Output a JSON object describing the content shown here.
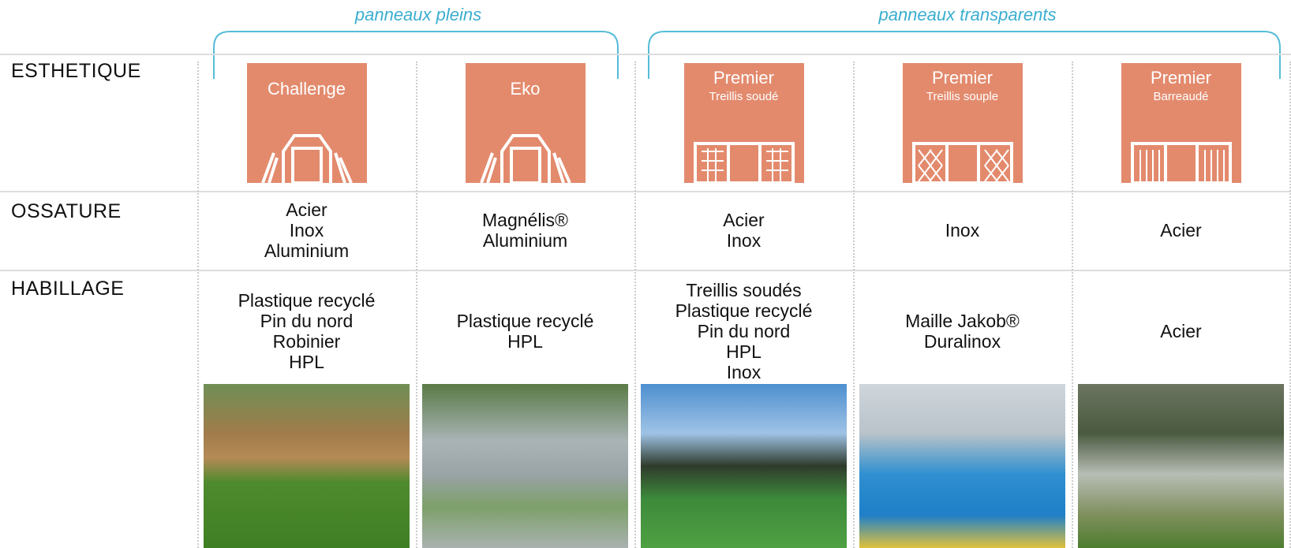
{
  "groups": [
    {
      "label": "panneaux pleins"
    },
    {
      "label": "panneaux transparents"
    }
  ],
  "row_labels": [
    "ESTHETIQUE",
    "OSSATURE",
    "HABILLAGE"
  ],
  "products": [
    {
      "name": "Challenge",
      "ossature": [
        "Acier",
        "Inox",
        "Aluminium"
      ],
      "habillage": [
        "Plastique recyclé",
        "Pin du nord",
        "Robinier",
        "HPL"
      ]
    },
    {
      "name": "Eko",
      "ossature": [
        "Magnélis®",
        "Aluminium"
      ],
      "habillage": [
        "Plastique recyclé",
        "HPL"
      ]
    },
    {
      "name": "Premier",
      "subtitle": "Treillis soudé",
      "ossature": [
        "Acier",
        "Inox"
      ],
      "habillage": [
        "Treillis soudés",
        "Plastique recyclé",
        "Pin du nord",
        "HPL",
        "Inox"
      ]
    },
    {
      "name": "Premier",
      "subtitle": "Treillis souple",
      "ossature": [
        "Inox"
      ],
      "habillage": [
        "Maille Jakob®",
        "Duralinox"
      ]
    },
    {
      "name": "Premier",
      "subtitle": "Barreaudé",
      "ossature": [
        "Acier"
      ],
      "habillage": [
        "Acier"
      ]
    }
  ]
}
